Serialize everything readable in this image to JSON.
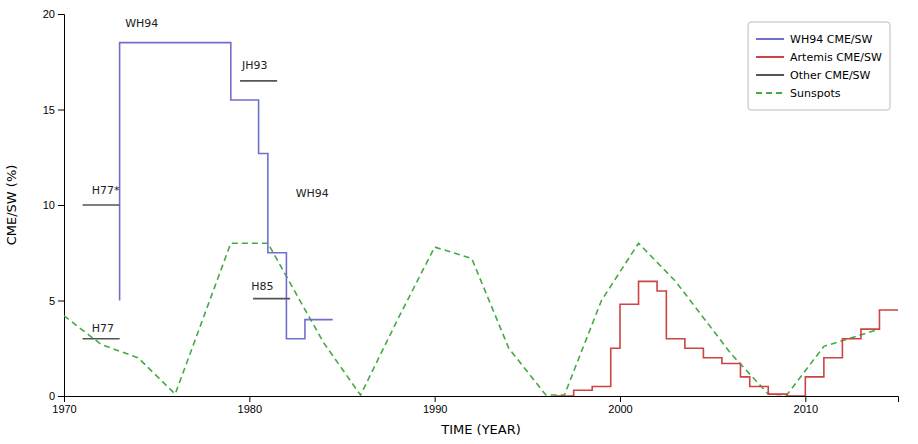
{
  "chart_data": {
    "type": "line",
    "xlabel": "TIME (YEAR)",
    "ylabel": "CME/SW (%)",
    "xlim": [
      1970,
      2015
    ],
    "ylim": [
      0,
      20
    ],
    "xticks": [
      1970,
      1980,
      1990,
      2000,
      2010
    ],
    "yticks": [
      0,
      5,
      10,
      15,
      20
    ],
    "grid": false,
    "legend": "upper right",
    "series": [
      {
        "name": "WH94 CME/SW",
        "color": "#7070cc",
        "line_style": "solid",
        "x": [
          1973.0,
          1973.0,
          1974.5,
          1974.5,
          1979.0,
          1979.0,
          1980.5,
          1980.5,
          1981.0,
          1981.0,
          1982.0,
          1982.0,
          1983.0,
          1983.0,
          1984.5,
          1984.5
        ],
        "values": [
          5.0,
          18.5,
          18.5,
          18.5,
          18.5,
          15.5,
          15.5,
          12.7,
          12.7,
          7.5,
          7.5,
          3.0,
          3.0,
          4.0,
          4.0,
          4.0
        ]
      },
      {
        "name": "Artemis CME/SW",
        "color": "#cc4444",
        "line_style": "solid",
        "x": [
          1996.5,
          1997.5,
          1997.5,
          1998.5,
          1998.5,
          1999.5,
          1999.5,
          2000.0,
          2000.0,
          2001.0,
          2001.0,
          2002.0,
          2002.0,
          2002.5,
          2002.5,
          2003.5,
          2003.5,
          2004.5,
          2004.5,
          2005.5,
          2005.5,
          2006.5,
          2006.5,
          2007.0,
          2007.0,
          2008.0,
          2008.0,
          2009.0,
          2009.0,
          2010.0,
          2010.0,
          2011.0,
          2011.0,
          2012.0,
          2012.0,
          2013.0,
          2013.0,
          2014.0,
          2014.0,
          2015.0
        ],
        "values": [
          0.0,
          0.0,
          0.3,
          0.3,
          0.5,
          0.5,
          2.5,
          2.5,
          4.8,
          4.8,
          6.0,
          6.0,
          5.5,
          5.5,
          3.0,
          3.0,
          2.5,
          2.5,
          2.0,
          2.0,
          1.7,
          1.7,
          1.0,
          1.0,
          0.5,
          0.5,
          0.1,
          0.1,
          0.0,
          0.0,
          1.0,
          1.0,
          2.0,
          2.0,
          3.0,
          3.0,
          3.5,
          3.5,
          4.5,
          4.5
        ]
      },
      {
        "name": "Other CME/SW",
        "color": "#555555",
        "line_style": "solid",
        "x": [
          1971.0,
          1973.0,
          null,
          1971.0,
          1973.0,
          null,
          1979.5,
          1981.5,
          null,
          1980.2,
          1982.2
        ],
        "values": [
          3.0,
          3.0,
          null,
          10.0,
          10.0,
          null,
          16.5,
          16.5,
          null,
          5.1,
          5.1
        ]
      },
      {
        "name": "Sunspots",
        "color": "#44aa44",
        "line_style": "dashed",
        "x": [
          1970,
          1972,
          1974,
          1976,
          1979,
          1981,
          1984,
          1986,
          1988,
          1990,
          1992,
          1994,
          1996,
          1997,
          1999,
          2001,
          2003,
          2006,
          2008,
          2009,
          2011,
          2014
        ],
        "values": [
          4.2,
          2.7,
          2.0,
          0.1,
          8.0,
          8.0,
          2.8,
          0.05,
          4.0,
          7.8,
          7.2,
          2.5,
          0.05,
          0.05,
          5.0,
          8.0,
          6.0,
          2.2,
          0.1,
          0.05,
          2.6,
          3.5
        ]
      }
    ],
    "annotations": [
      {
        "text": "WH94",
        "x": 1973.3,
        "y": 19.3
      },
      {
        "text": "H77*",
        "x": 1971.5,
        "y": 10.6
      },
      {
        "text": "H77",
        "x": 1971.5,
        "y": 3.35
      },
      {
        "text": "JH93",
        "x": 1979.6,
        "y": 17.1
      },
      {
        "text": "WH94",
        "x": 1982.5,
        "y": 10.4
      },
      {
        "text": "H85",
        "x": 1980.1,
        "y": 5.55
      }
    ]
  }
}
